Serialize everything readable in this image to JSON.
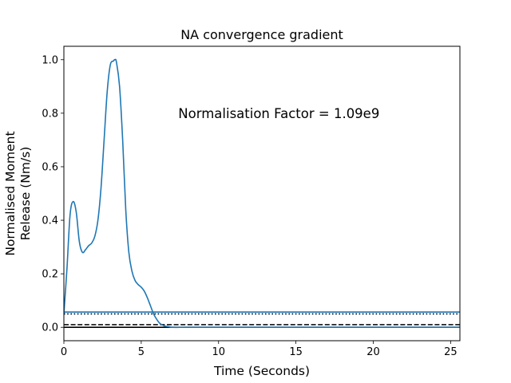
{
  "chart_data": {
    "type": "line",
    "title": "NA convergence gradient",
    "xlabel": "Time (Seconds)",
    "ylabel_lines": [
      "Normalised Moment",
      "Release (Nm/s)"
    ],
    "xlim": [
      0,
      25.6
    ],
    "ylim": [
      -0.05,
      1.05
    ],
    "xticks": [
      0,
      5,
      10,
      15,
      20,
      25
    ],
    "xtick_labels": [
      "0",
      "5",
      "10",
      "15",
      "20",
      "25"
    ],
    "yticks": [
      0.0,
      0.2,
      0.4,
      0.6,
      0.8,
      1.0
    ],
    "ytick_labels": [
      "0.0",
      "0.2",
      "0.4",
      "0.6",
      "0.8",
      "1.0"
    ],
    "grid": false,
    "annotation": "Normalisation Factor = 1.09e9",
    "series_color": "#1f77b4",
    "series": [
      {
        "x": [
          0,
          0.2,
          0.4,
          0.6,
          0.8,
          1.0,
          1.2,
          1.4,
          1.6,
          1.8,
          2.0,
          2.2,
          2.4,
          2.6,
          2.8,
          3.0,
          3.2,
          3.3,
          3.4,
          3.6,
          3.8,
          4.0,
          4.2,
          4.4,
          4.6,
          4.8,
          5.0,
          5.2,
          5.4,
          5.6,
          5.8,
          6.0,
          6.2,
          6.5,
          6.8,
          7.0,
          8.0,
          10.0,
          15.0,
          20.0,
          25.6
        ],
        "y": [
          0.05,
          0.22,
          0.42,
          0.47,
          0.43,
          0.32,
          0.28,
          0.29,
          0.305,
          0.315,
          0.34,
          0.4,
          0.52,
          0.7,
          0.88,
          0.98,
          0.995,
          1.0,
          0.99,
          0.9,
          0.7,
          0.44,
          0.28,
          0.21,
          0.175,
          0.16,
          0.15,
          0.135,
          0.11,
          0.08,
          0.05,
          0.03,
          0.015,
          0.005,
          0.002,
          0.0,
          0.0,
          0.0,
          0.0,
          0.0,
          0.0
        ]
      }
    ],
    "hlines": [
      {
        "y": 0.057,
        "style": "solid",
        "color": "#1f77b4"
      },
      {
        "y": 0.05,
        "style": "dotted",
        "color": "#000000"
      },
      {
        "y": 0.01,
        "style": "dashed",
        "color": "#000000"
      },
      {
        "y": 0.0,
        "style": "solid",
        "color": "#000000"
      }
    ]
  }
}
